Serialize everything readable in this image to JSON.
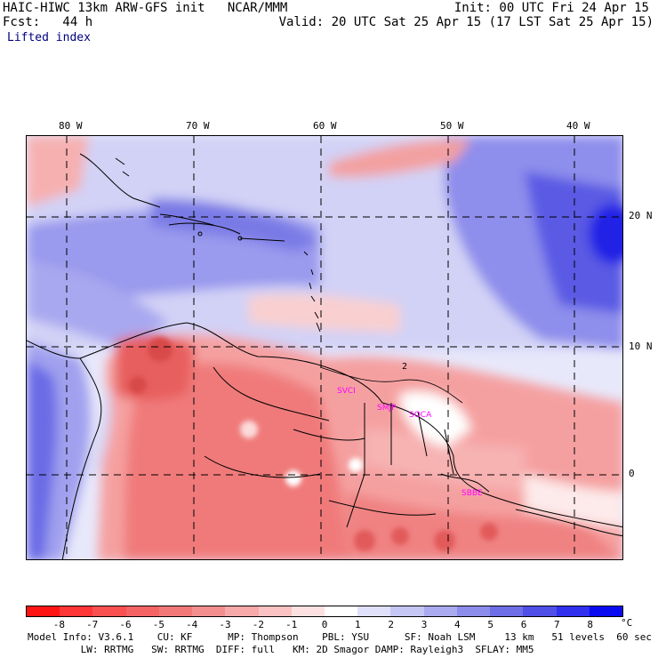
{
  "header": {
    "title": "HAIC-HIWC 13km ARW-GFS init   NCAR/MMM",
    "forecast": "Fcst:   44 h",
    "field": "Lifted index",
    "init": "Init: 00 UTC Fri 24 Apr 15",
    "valid": "Valid: 20 UTC Sat 25 Apr 15 (17 LST Sat 25 Apr 15)"
  },
  "map": {
    "lon_labels": [
      "80 W",
      "70 W",
      "60 W",
      "50 W",
      "40 W"
    ],
    "lat_labels": [
      "20 N",
      "10 N",
      "0"
    ],
    "stations": [
      "SVCI",
      "SMJP",
      "SOCA",
      "SBBE"
    ],
    "contour_label": "2",
    "colors": {
      "negative_strong": "#ff0000",
      "negative_mid": "#f06d6d",
      "negative_light": "#f9c4c4",
      "neutral": "#ffffff",
      "positive_light": "#c8c8f4",
      "positive_mid": "#7070ea",
      "positive_strong": "#0000ee",
      "station": "#ff00ff"
    }
  },
  "colorbar": {
    "labels": [
      "-8",
      "-7",
      "-6",
      "-5",
      "-4",
      "-3",
      "-2",
      "-1",
      "0",
      "1",
      "2",
      "3",
      "4",
      "5",
      "6",
      "7",
      "8"
    ],
    "unit": "°C",
    "colors": [
      "#ff1414",
      "#ff3636",
      "#f95050",
      "#f56464",
      "#f27878",
      "#f48f8f",
      "#f7a8a8",
      "#fac2c2",
      "#fde0e0",
      "#ffffff",
      "#e0e0fa",
      "#c6c6f5",
      "#aaaaf0",
      "#8c8ceb",
      "#6e6ee6",
      "#5050e8",
      "#3030ee",
      "#0a0af0"
    ]
  },
  "footer": {
    "line1": "Model Info: V3.6.1    CU: KF      MP: Thompson    PBL: YSU      SF: Noah LSM     13 km   51 levels  60 sec",
    "line2": "         LW: RRTMG   SW: RRTMG  DIFF: full   KM: 2D Smagor DAMP: Rayleigh3  SFLAY: MM5"
  }
}
